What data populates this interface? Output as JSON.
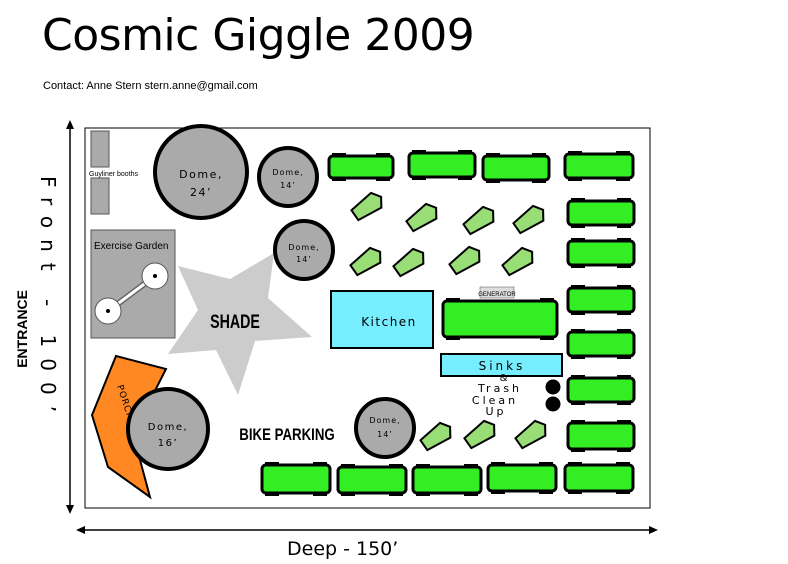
{
  "title": "Cosmic Giggle 2009",
  "contact": "Contact:  Anne Stern stern.anne@gmail.com",
  "dimensions": {
    "depth_label": "Deep - 150’",
    "front_label": "Front - 100’",
    "entrance_label": "ENTRANCE"
  },
  "areas": {
    "guyliner": "Guyliner booths",
    "exercise_garden": "Exercise Garden",
    "shade": "SHADE",
    "porch": "PORCH / ENTRY",
    "bike_parking": "BIKE PARKING",
    "kitchen": "Kitchen",
    "generator": "GENERATOR",
    "sinks": "Sinks",
    "trash": [
      "& ",
      "Trash",
      "Clean",
      "Up"
    ]
  },
  "domes": [
    {
      "label": "Dome,",
      "size": "24’"
    },
    {
      "label": "Dome,",
      "size": "14’"
    },
    {
      "label": "Dome,",
      "size": "14’"
    },
    {
      "label": "Dome,",
      "size": "16’"
    },
    {
      "label": "Dome,",
      "size": "14’"
    }
  ],
  "colors": {
    "vehicle": "#33ee22",
    "tent": "#99dd77",
    "dome": "#aaaaaa",
    "kitchen": "#77eeff",
    "porch": "#ff8822",
    "shade": "#cccccc"
  }
}
